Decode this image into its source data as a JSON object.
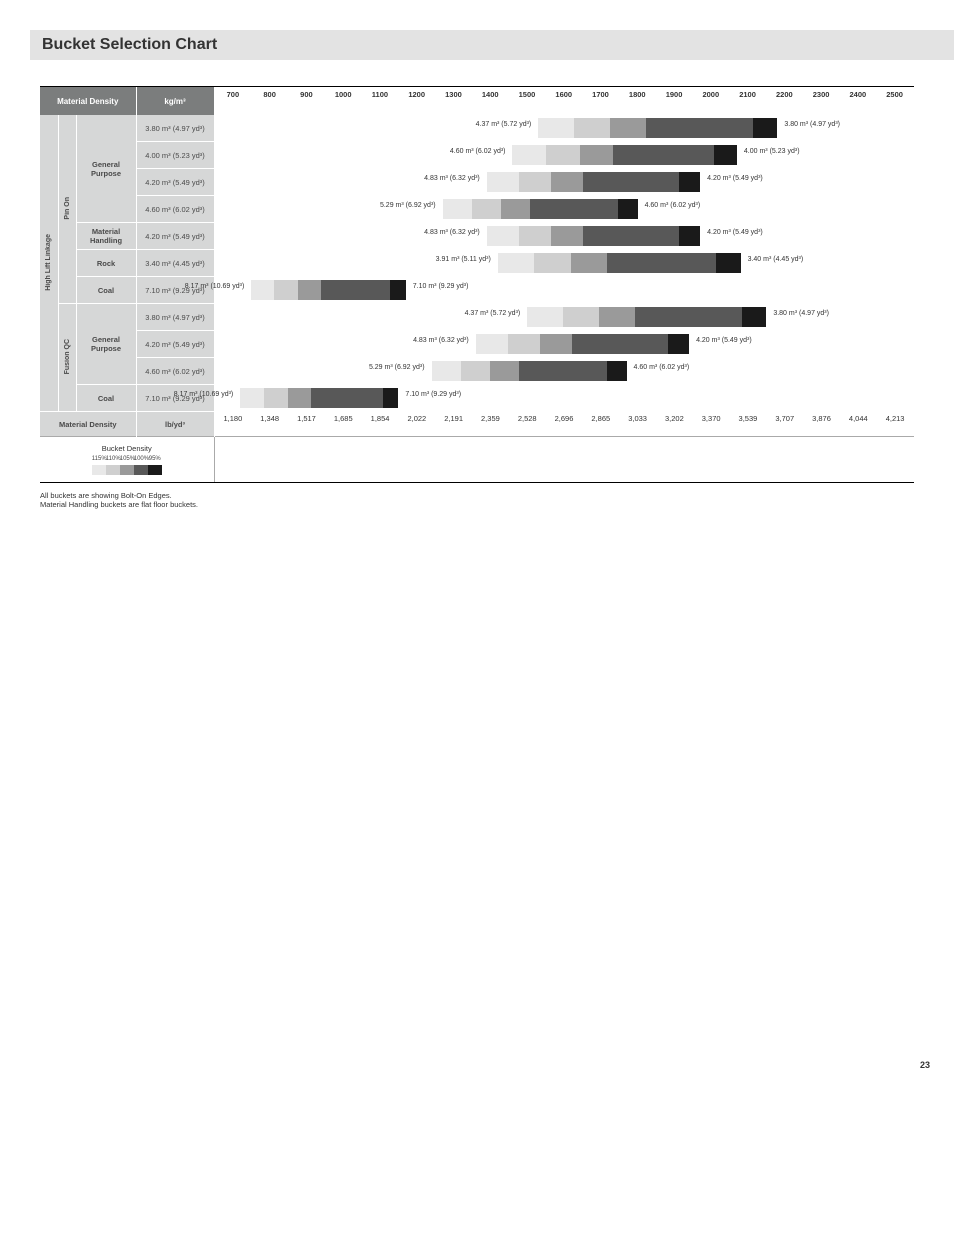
{
  "title": "Bucket Selection Chart",
  "header": {
    "material_density_label": "Material Density",
    "kg_unit": "kg/m³",
    "lb_unit": "lb/yd³"
  },
  "kg_ticks": [
    700,
    800,
    900,
    1000,
    1100,
    1200,
    1300,
    1400,
    1500,
    1600,
    1700,
    1800,
    1900,
    2000,
    2100,
    2200,
    2300,
    2400,
    2500
  ],
  "lb_ticks": [
    "1,180",
    "1,348",
    "1,517",
    "1,685",
    "1,854",
    "2,022",
    "2,191",
    "2,359",
    "2,528",
    "2,696",
    "2,865",
    "3,033",
    "3,202",
    "3,370",
    "3,539",
    "3,707",
    "3,876",
    "4,044",
    "4,213"
  ],
  "x_min": 650,
  "x_max": 2550,
  "linkage_label": "High Lift Linkage",
  "groups": [
    {
      "attach_label": "Pin On",
      "rows": [
        {
          "cat": "General Purpose",
          "cat_span": 4,
          "size": "3.80 m³ (4.97 yd³)",
          "bar_start": 1530,
          "bar_end": 2180,
          "label_left": "4.37 m³ (5.72 yd³)",
          "label_right": "3.80 m³ (4.97 yd³)"
        },
        {
          "size": "4.00 m³ (5.23 yd³)",
          "bar_start": 1460,
          "bar_end": 2070,
          "label_left": "4.60 m³ (6.02 yd³)",
          "label_right": "4.00 m³ (5.23 yd³)"
        },
        {
          "size": "4.20 m³ (5.49 yd³)",
          "bar_start": 1390,
          "bar_end": 1970,
          "label_left": "4.83 m³ (6.32 yd³)",
          "label_right": "4.20 m³ (5.49 yd³)"
        },
        {
          "size": "4.60 m³ (6.02 yd³)",
          "bar_start": 1270,
          "bar_end": 1800,
          "label_left": "5.29 m³ (6.92 yd³)",
          "label_right": "4.60 m³ (6.02 yd³)"
        },
        {
          "cat": "Material Handling",
          "cat_span": 1,
          "size": "4.20 m³ (5.49 yd³)",
          "bar_start": 1390,
          "bar_end": 1970,
          "label_left": "4.83 m³ (6.32 yd³)",
          "label_right": "4.20 m³ (5.49 yd³)"
        },
        {
          "cat": "Rock",
          "cat_span": 1,
          "size": "3.40 m³ (4.45 yd³)",
          "bar_start": 1420,
          "bar_end": 2080,
          "label_left": "3.91 m³ (5.11 yd³)",
          "label_right": "3.40 m³ (4.45 yd³)"
        },
        {
          "cat": "Coal",
          "cat_span": 1,
          "size": "7.10 m³ (9.29 yd³)",
          "bar_start": 750,
          "bar_end": 1170,
          "label_left": "8.17 m³ (10.69 yd³)",
          "label_right": "7.10 m³ (9.29 yd³)"
        }
      ]
    },
    {
      "attach_label": "Fusion QC",
      "rows": [
        {
          "cat": "General Purpose",
          "cat_span": 3,
          "size": "3.80 m³ (4.97 yd³)",
          "bar_start": 1500,
          "bar_end": 2150,
          "label_left": "4.37 m³ (5.72 yd³)",
          "label_right": "3.80 m³ (4.97 yd³)"
        },
        {
          "size": "4.20 m³ (5.49 yd³)",
          "bar_start": 1360,
          "bar_end": 1940,
          "label_left": "4.83 m³ (6.32 yd³)",
          "label_right": "4.20 m³ (5.49 yd³)"
        },
        {
          "size": "4.60 m³ (6.02 yd³)",
          "bar_start": 1240,
          "bar_end": 1770,
          "label_left": "5.29 m³ (6.92 yd³)",
          "label_right": "4.60 m³ (6.02 yd³)"
        },
        {
          "cat": "Coal",
          "cat_span": 1,
          "size": "7.10 m³ (9.29 yd³)",
          "bar_start": 720,
          "bar_end": 1150,
          "label_left": "8.17 m³ (10.69 yd³)",
          "label_right": "7.10 m³ (9.29 yd³)"
        }
      ]
    }
  ],
  "legend": {
    "title": "Bucket Density",
    "labels": [
      "115%",
      "110%",
      "105%",
      "100%",
      "95%"
    ],
    "colors": [
      "#e8e8e8",
      "#cfcfcf",
      "#9a9a9a",
      "#585858",
      "#1a1a1a"
    ]
  },
  "footnotes": [
    "All buckets are showing Bolt-On Edges.",
    "Material Handling buckets are flat floor buckets."
  ],
  "page_number": "23",
  "col_widths": {
    "linkage": 18,
    "attach": 18,
    "category": 60,
    "size": 78
  }
}
